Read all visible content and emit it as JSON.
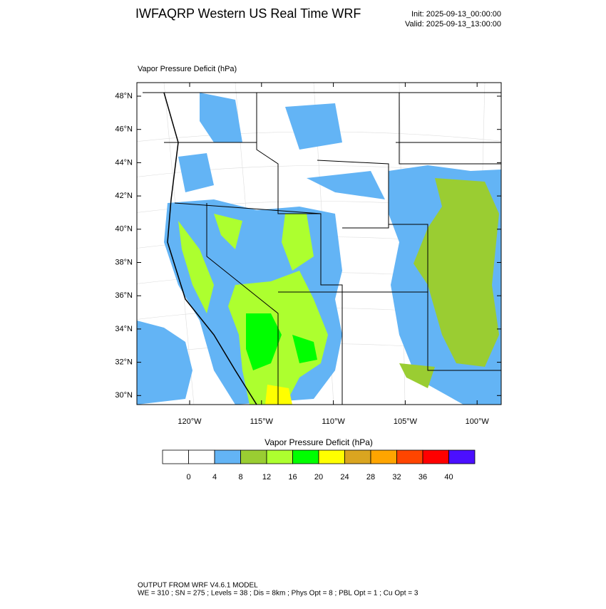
{
  "header": {
    "title": "IWFAQRP Western US Real Time WRF",
    "init": "Init: 2025-09-13_00:00:00",
    "valid": "Valid: 2025-09-13_13:00:00"
  },
  "map": {
    "title": "Vapor Pressure Deficit   (hPa)",
    "lat_labels": [
      "48°N",
      "46°N",
      "44°N",
      "42°N",
      "40°N",
      "38°N",
      "36°N",
      "34°N",
      "32°N",
      "30°N"
    ],
    "lon_labels": [
      "120°W",
      "115°W",
      "110°W",
      "105°W",
      "100°W"
    ]
  },
  "colorbar": {
    "title": "Vapor Pressure Deficit  (hPa)",
    "colors": [
      "#ffffff",
      "#ffffff",
      "#63b4f5",
      "#9acd32",
      "#adff2f",
      "#00ff00",
      "#ffff00",
      "#daa520",
      "#ffa500",
      "#ff4500",
      "#ff0000",
      "#4b0fff"
    ],
    "labels": [
      0,
      4,
      8,
      12,
      16,
      20,
      24,
      28,
      32,
      36,
      40
    ]
  },
  "footer": {
    "line1": "OUTPUT FROM WRF V4.6.1 MODEL",
    "line2": "WE = 310 ; SN = 275 ; Levels = 38 ; Dis = 8km ; Phys Opt = 8 ; PBL Opt = 1 ; Cu Opt = 3"
  }
}
